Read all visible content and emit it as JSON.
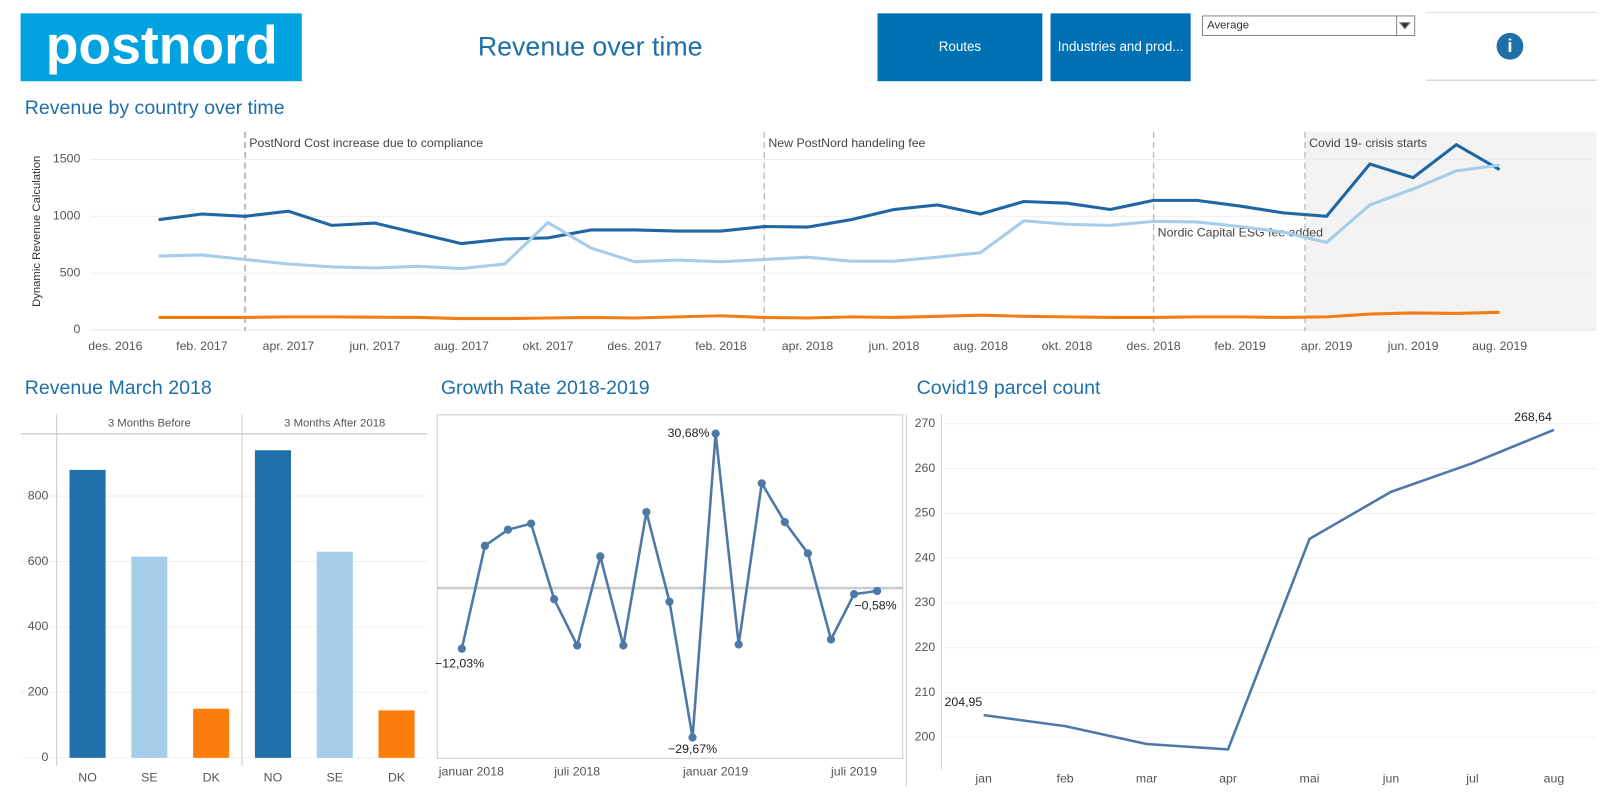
{
  "header": {
    "logo": "postnord",
    "title": "Revenue over time",
    "buttons": [
      "Routes",
      "Industries and prod..."
    ],
    "dropdown": "Average",
    "info": "i"
  },
  "chart_data": [
    {
      "type": "line",
      "title": "Revenue by country over time",
      "y_label": "Dynamic Revenue Calculation",
      "categories": [
        "des. 2016",
        null,
        "feb. 2017",
        null,
        "apr. 2017",
        null,
        "jun. 2017",
        null,
        "aug. 2017",
        null,
        "okt. 2017",
        null,
        "des. 2017",
        null,
        "feb. 2018",
        null,
        "apr. 2018",
        null,
        "jun. 2018",
        null,
        "aug. 2018",
        null,
        "okt. 2018",
        null,
        "des. 2018",
        null,
        "feb. 2019",
        null,
        "apr. 2019",
        null,
        "jun. 2019",
        null,
        "aug. 2019"
      ],
      "series": [
        {
          "color": "#1f66a3",
          "values": [
            null,
            970,
            1020,
            1000,
            1045,
            920,
            940,
            850,
            760,
            800,
            810,
            880,
            880,
            870,
            870,
            910,
            905,
            970,
            1060,
            1100,
            1020,
            1130,
            1115,
            1060,
            1140,
            1140,
            1090,
            1030,
            1000,
            1460,
            1340,
            1630,
            1410
          ]
        },
        {
          "color": "#a6cde9",
          "values": [
            null,
            650,
            660,
            620,
            580,
            555,
            545,
            560,
            540,
            580,
            945,
            720,
            600,
            615,
            600,
            620,
            640,
            605,
            605,
            640,
            680,
            960,
            930,
            920,
            955,
            950,
            910,
            860,
            770,
            1100,
            1240,
            1400,
            1450
          ]
        },
        {
          "color": "#f57d15",
          "values": [
            null,
            110,
            110,
            110,
            115,
            115,
            112,
            110,
            100,
            100,
            105,
            110,
            105,
            115,
            125,
            110,
            105,
            115,
            110,
            120,
            130,
            120,
            115,
            110,
            110,
            115,
            115,
            110,
            115,
            140,
            150,
            145,
            155
          ]
        }
      ],
      "ylim": [
        -10,
        1745
      ],
      "yticks": [
        0,
        500,
        1000,
        1500
      ],
      "grid": true,
      "annotations": [
        {
          "text": "PostNord Cost increase due to compliance",
          "x": 3
        },
        {
          "text": "New PostNord handeling fee",
          "x": 15
        },
        {
          "text": "Nordic Capital ESG fee added",
          "x": 24
        },
        {
          "text": "Covid 19- crisis starts",
          "x": 27.5
        }
      ]
    },
    {
      "type": "bar",
      "title": "Revenue March 2018",
      "categories": [
        "NO",
        "SE",
        "DK"
      ],
      "colors": [
        "#1f6fa8",
        "#a6cde9",
        "#fc7d0b"
      ],
      "series": [
        {
          "name": "3 Months Before",
          "values": [
            880,
            615,
            150
          ]
        },
        {
          "name": "3 Months After 2018",
          "values": [
            940,
            630,
            145
          ]
        }
      ],
      "ylim": [
        -25,
        990
      ],
      "yticks": [
        0,
        200,
        400,
        600,
        800
      ],
      "grid": true
    },
    {
      "type": "line",
      "title": "Growth Rate 2018-2019",
      "color": "#4e79a7",
      "categories": [
        "januar 2018",
        null,
        null,
        null,
        null,
        null,
        "juli 2018",
        null,
        null,
        null,
        null,
        null,
        "januar 2019",
        null,
        null,
        null,
        null,
        null,
        "juli 2019",
        null
      ],
      "values": [
        null,
        -12.03,
        8.4,
        11.6,
        12.8,
        -2.2,
        -11.4,
        6.3,
        -11.4,
        15.1,
        -2.7,
        -29.67,
        30.68,
        -11.2,
        20.8,
        13.1,
        6.9,
        -10.2,
        -1.2,
        -0.58
      ],
      "value_labels": [
        null,
        "−12,03%",
        null,
        null,
        null,
        null,
        null,
        null,
        null,
        null,
        null,
        "−29,67%",
        "30,68%",
        null,
        null,
        null,
        null,
        null,
        null,
        "−0,58%"
      ],
      "ylim": [
        -33.7,
        34.5
      ]
    },
    {
      "type": "line",
      "title": "Covid19 parcel count",
      "color": "#4e79a7",
      "categories": [
        "jan",
        "feb",
        "mar",
        "apr",
        "mai",
        "jun",
        "jul",
        "aug"
      ],
      "values": [
        204.95,
        202.5,
        198.5,
        197.3,
        244.3,
        254.8,
        261.2,
        268.64
      ],
      "value_labels": [
        "204,95",
        null,
        null,
        null,
        null,
        null,
        null,
        "268,64"
      ],
      "ylim": [
        192.9,
        272.1
      ],
      "yticks": [
        200,
        210,
        220,
        230,
        240,
        250,
        260,
        270
      ],
      "grid": true
    }
  ]
}
